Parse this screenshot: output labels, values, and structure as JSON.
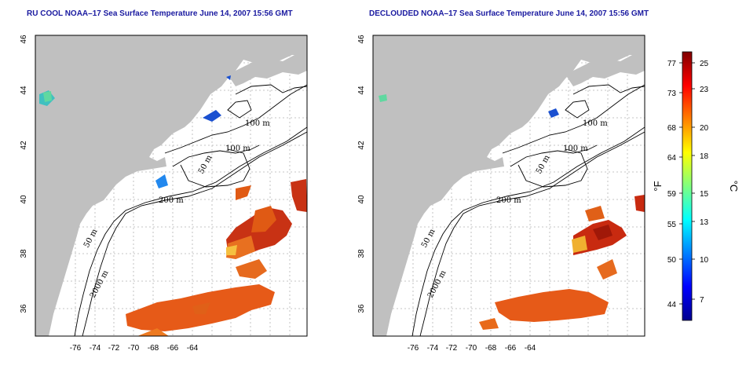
{
  "titles": {
    "left": "RU COOL NOAA–17 Sea Surface Temperature June 14, 2007 15:56 GMT",
    "right": "DECLOUDED NOAA–17 Sea Surface Temperature June 14, 2007 15:56 GMT"
  },
  "map": {
    "x_ticks": [
      "-76",
      "-74",
      "-72",
      "-70",
      "-68",
      "-66",
      "-64"
    ],
    "y_ticks": [
      "36",
      "38",
      "40",
      "42",
      "44",
      "46"
    ],
    "contours": {
      "left": [
        "100 m",
        "100 m",
        "50 m",
        "200 m",
        "50 m",
        "2000 m"
      ],
      "right": [
        "100 m",
        "100 m",
        "50 m",
        "200 m",
        "50 m",
        "2000 m"
      ]
    }
  },
  "colorbar": {
    "f_label": "°F",
    "c_label": "°C",
    "f_ticks": [
      "77",
      "73",
      "68",
      "64",
      "59",
      "55",
      "50",
      "44"
    ],
    "c_ticks": [
      "25",
      "23",
      "20",
      "18",
      "15",
      "13",
      "10",
      "7"
    ]
  },
  "colors": {
    "land": "#c0c0c0",
    "ocean": "#ffffff",
    "grid": "#b4b4b4",
    "title": "#1a1aa0"
  }
}
